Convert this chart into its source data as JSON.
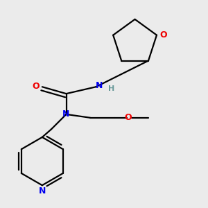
{
  "background_color": "#ebebeb",
  "atom_colors": {
    "C": "#000000",
    "N": "#0000ee",
    "O": "#ee0000",
    "H": "#6a9a9a"
  },
  "bond_color": "#000000",
  "figsize": [
    3.0,
    3.0
  ],
  "dpi": 100
}
